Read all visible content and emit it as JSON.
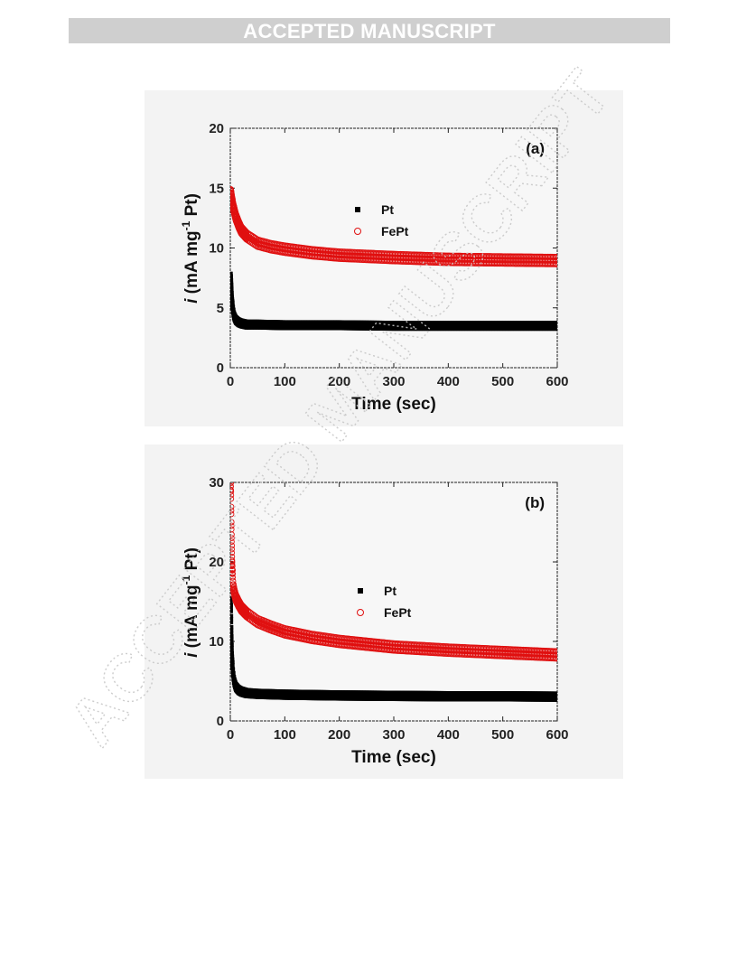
{
  "page": {
    "banner": "ACCEPTED MANUSCRIPT",
    "watermark_text": "ACCEPTED MANUSCRIPT"
  },
  "colors": {
    "pt": "#000000",
    "fept": "#e01010",
    "banner_bg": "#cfcfcf",
    "panel_bg": "#f3f3f3"
  },
  "chart_data": [
    {
      "type": "scatter",
      "panel_label": "(a)",
      "xlabel": "Time (sec)",
      "ylabel_parts": {
        "italic": "i",
        "text": " (mA mg",
        "sup": "-1",
        "tail": " Pt)"
      },
      "xlim": [
        0,
        600
      ],
      "ylim": [
        0,
        20
      ],
      "xticks": [
        0,
        100,
        200,
        300,
        400,
        500,
        600
      ],
      "yticks": [
        0,
        5,
        10,
        15,
        20
      ],
      "legend_position": "center",
      "series": [
        {
          "name": "Pt",
          "marker": "square",
          "x": [
            1,
            2,
            3,
            5,
            7,
            10,
            15,
            20,
            30,
            50,
            100,
            200,
            300,
            400,
            500,
            600
          ],
          "y": [
            7.6,
            6.6,
            5.6,
            4.8,
            4.3,
            4.0,
            3.8,
            3.7,
            3.6,
            3.6,
            3.55,
            3.55,
            3.5,
            3.5,
            3.5,
            3.5
          ],
          "band": 0.25
        },
        {
          "name": "FePt",
          "marker": "circle",
          "x": [
            1,
            3,
            5,
            10,
            15,
            20,
            30,
            40,
            50,
            75,
            100,
            150,
            200,
            300,
            400,
            500,
            600
          ],
          "y": [
            14.6,
            14.0,
            13.5,
            12.6,
            12.0,
            11.5,
            11.0,
            10.7,
            10.4,
            10.1,
            9.9,
            9.6,
            9.4,
            9.2,
            9.05,
            9.0,
            8.95
          ],
          "band": 0.3
        }
      ]
    },
    {
      "type": "scatter",
      "panel_label": "(b)",
      "xlabel": "Time (sec)",
      "ylabel_parts": {
        "italic": "i",
        "text": " (mA mg",
        "sup": "-1",
        "tail": " Pt)"
      },
      "xlim": [
        0,
        600
      ],
      "ylim": [
        0,
        30
      ],
      "xticks": [
        0,
        100,
        200,
        300,
        400,
        500,
        600
      ],
      "yticks": [
        0,
        10,
        20,
        30
      ],
      "legend_position": "center-right",
      "series": [
        {
          "name": "Pt",
          "marker": "square",
          "x": [
            1,
            2,
            3,
            5,
            7,
            10,
            15,
            20,
            30,
            50,
            100,
            200,
            300,
            400,
            500,
            600
          ],
          "y": [
            15.0,
            11.0,
            8.0,
            6.0,
            5.0,
            4.3,
            3.9,
            3.7,
            3.5,
            3.4,
            3.3,
            3.2,
            3.15,
            3.1,
            3.1,
            3.05
          ],
          "band": 0.4
        },
        {
          "name": "FePt",
          "marker": "circle",
          "x": [
            1,
            2,
            3,
            5,
            8,
            10,
            15,
            20,
            30,
            50,
            75,
            100,
            150,
            200,
            300,
            400,
            500,
            600
          ],
          "y": [
            29.5,
            24.0,
            20.0,
            17.0,
            16.0,
            15.5,
            14.8,
            14.2,
            13.5,
            12.5,
            11.8,
            11.2,
            10.5,
            10.0,
            9.3,
            8.9,
            8.6,
            8.3
          ],
          "band": 0.45
        }
      ]
    }
  ]
}
